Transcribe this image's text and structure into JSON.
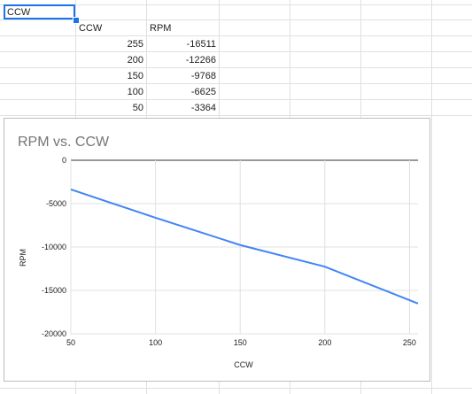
{
  "sheet": {
    "a1": "CCW",
    "headers": [
      "CCW",
      "RPM"
    ],
    "rows": [
      {
        "ccw": "255",
        "rpm": "-16511"
      },
      {
        "ccw": "200",
        "rpm": "-12266"
      },
      {
        "ccw": "150",
        "rpm": "-9768"
      },
      {
        "ccw": "100",
        "rpm": "-6625"
      },
      {
        "ccw": "50",
        "rpm": "-3364"
      }
    ]
  },
  "chart_data": {
    "type": "line",
    "title": "RPM vs. CCW",
    "xlabel": "CCW",
    "ylabel": "RPM",
    "x": [
      255,
      200,
      150,
      100,
      50
    ],
    "series": [
      {
        "values": [
          -16511,
          -12266,
          -9768,
          -6625,
          -3364
        ],
        "color": "#4285f4"
      }
    ],
    "xlim": [
      50,
      255
    ],
    "ylim": [
      -20000,
      0
    ],
    "xticks": [
      "50",
      "100",
      "150",
      "200",
      "250"
    ],
    "yticks": [
      "0",
      "-5000",
      "-10000",
      "-15000",
      "-20000"
    ],
    "grid": true,
    "legend": "none"
  }
}
